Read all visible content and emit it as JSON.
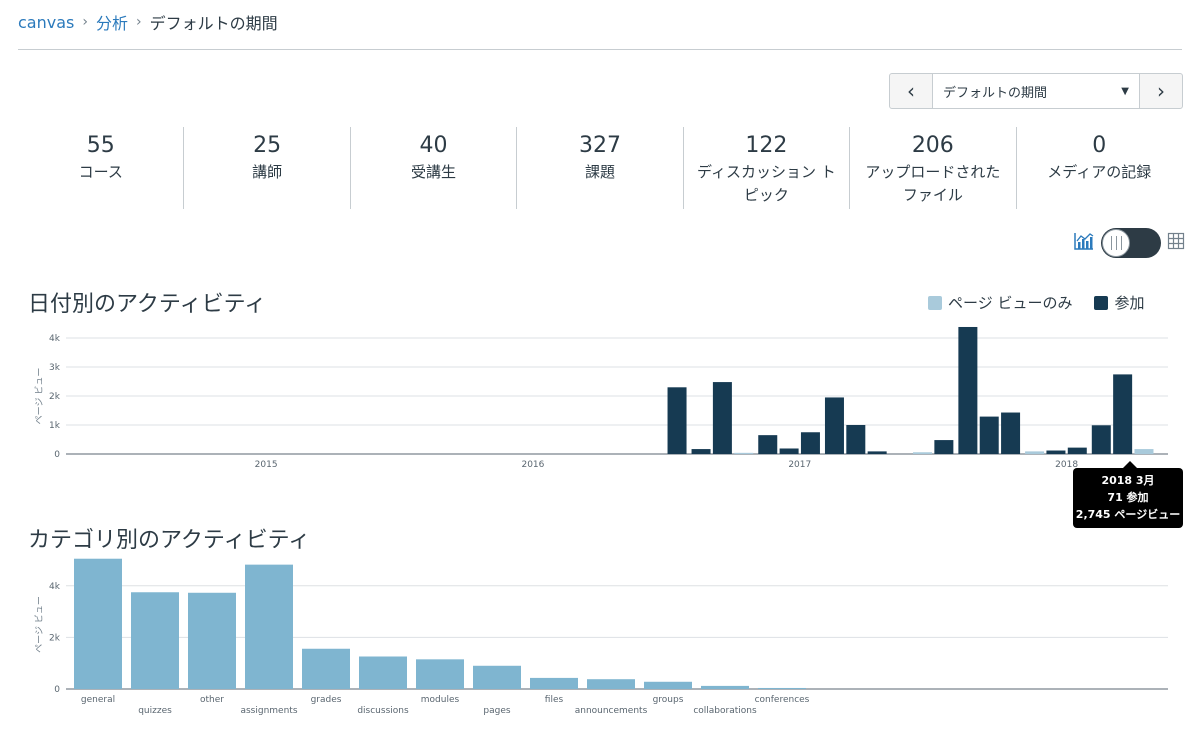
{
  "breadcrumb": {
    "home": "canvas",
    "section": "分析",
    "current": "デフォルトの期間"
  },
  "period_selector": {
    "value": "デフォルトの期間"
  },
  "stats": [
    {
      "num": "55",
      "label": "コース"
    },
    {
      "num": "25",
      "label": "講師"
    },
    {
      "num": "40",
      "label": "受講生"
    },
    {
      "num": "327",
      "label": "課題"
    },
    {
      "num": "122",
      "label": "ディスカッション トピック"
    },
    {
      "num": "206",
      "label": "アップロードされたファイル"
    },
    {
      "num": "0",
      "label": "メディアの記録"
    }
  ],
  "colors": {
    "participation": "#163a52",
    "pageviews_light": "#a9cadb",
    "category_bar": "#7fb5d0",
    "link": "#2b7abc"
  },
  "activity_title": "日付別のアクティビティ",
  "legend": {
    "pageviews": "ページ ビューのみ",
    "participation": "参加"
  },
  "category_title": "カテゴリ別のアクティビティ",
  "tooltip": {
    "line1": "2018 3月",
    "line2": "71 参加",
    "line3": "2,745 ページビュー"
  },
  "chart_data": [
    {
      "type": "bar",
      "title": "日付別のアクティビティ",
      "ylabel": "ページ ビュー",
      "ylim": [
        0,
        4000
      ],
      "yticks": [
        "0",
        "1k",
        "2k",
        "3k",
        "4k"
      ],
      "x_tick_labels": [
        "2015",
        "2016",
        "2017",
        "2018"
      ],
      "x_range": [
        2014.25,
        2018.38
      ],
      "series": [
        {
          "name": "参加",
          "points": [
            {
              "x": 2016.54,
              "y": 2300
            },
            {
              "x": 2016.63,
              "y": 170
            },
            {
              "x": 2016.71,
              "y": 2480
            },
            {
              "x": 2016.88,
              "y": 650
            },
            {
              "x": 2016.96,
              "y": 190
            },
            {
              "x": 2017.04,
              "y": 750
            },
            {
              "x": 2017.13,
              "y": 1950
            },
            {
              "x": 2017.21,
              "y": 1000
            },
            {
              "x": 2017.29,
              "y": 90
            },
            {
              "x": 2017.54,
              "y": 480
            },
            {
              "x": 2017.63,
              "y": 4380
            },
            {
              "x": 2017.71,
              "y": 1290
            },
            {
              "x": 2017.79,
              "y": 1430
            },
            {
              "x": 2017.96,
              "y": 120
            },
            {
              "x": 2018.04,
              "y": 220
            },
            {
              "x": 2018.13,
              "y": 990
            },
            {
              "x": 2018.21,
              "y": 2745
            }
          ]
        },
        {
          "name": "ページ ビューのみ",
          "points": [
            {
              "x": 2016.79,
              "y": 40
            },
            {
              "x": 2017.46,
              "y": 60
            },
            {
              "x": 2017.88,
              "y": 90
            },
            {
              "x": 2018.29,
              "y": 170
            }
          ]
        }
      ]
    },
    {
      "type": "bar",
      "title": "カテゴリ別のアクティビティ",
      "ylabel": "ページ ビュー",
      "ylim": [
        0,
        5000
      ],
      "yticks": [
        "0",
        "2k",
        "4k"
      ],
      "categories": [
        "general",
        "quizzes",
        "other",
        "assignments",
        "grades",
        "discussions",
        "modules",
        "pages",
        "files",
        "announcements",
        "groups",
        "collaborations",
        "conferences"
      ],
      "values": [
        5050,
        3750,
        3730,
        4820,
        1560,
        1260,
        1150,
        900,
        430,
        380,
        280,
        120,
        40
      ]
    }
  ]
}
